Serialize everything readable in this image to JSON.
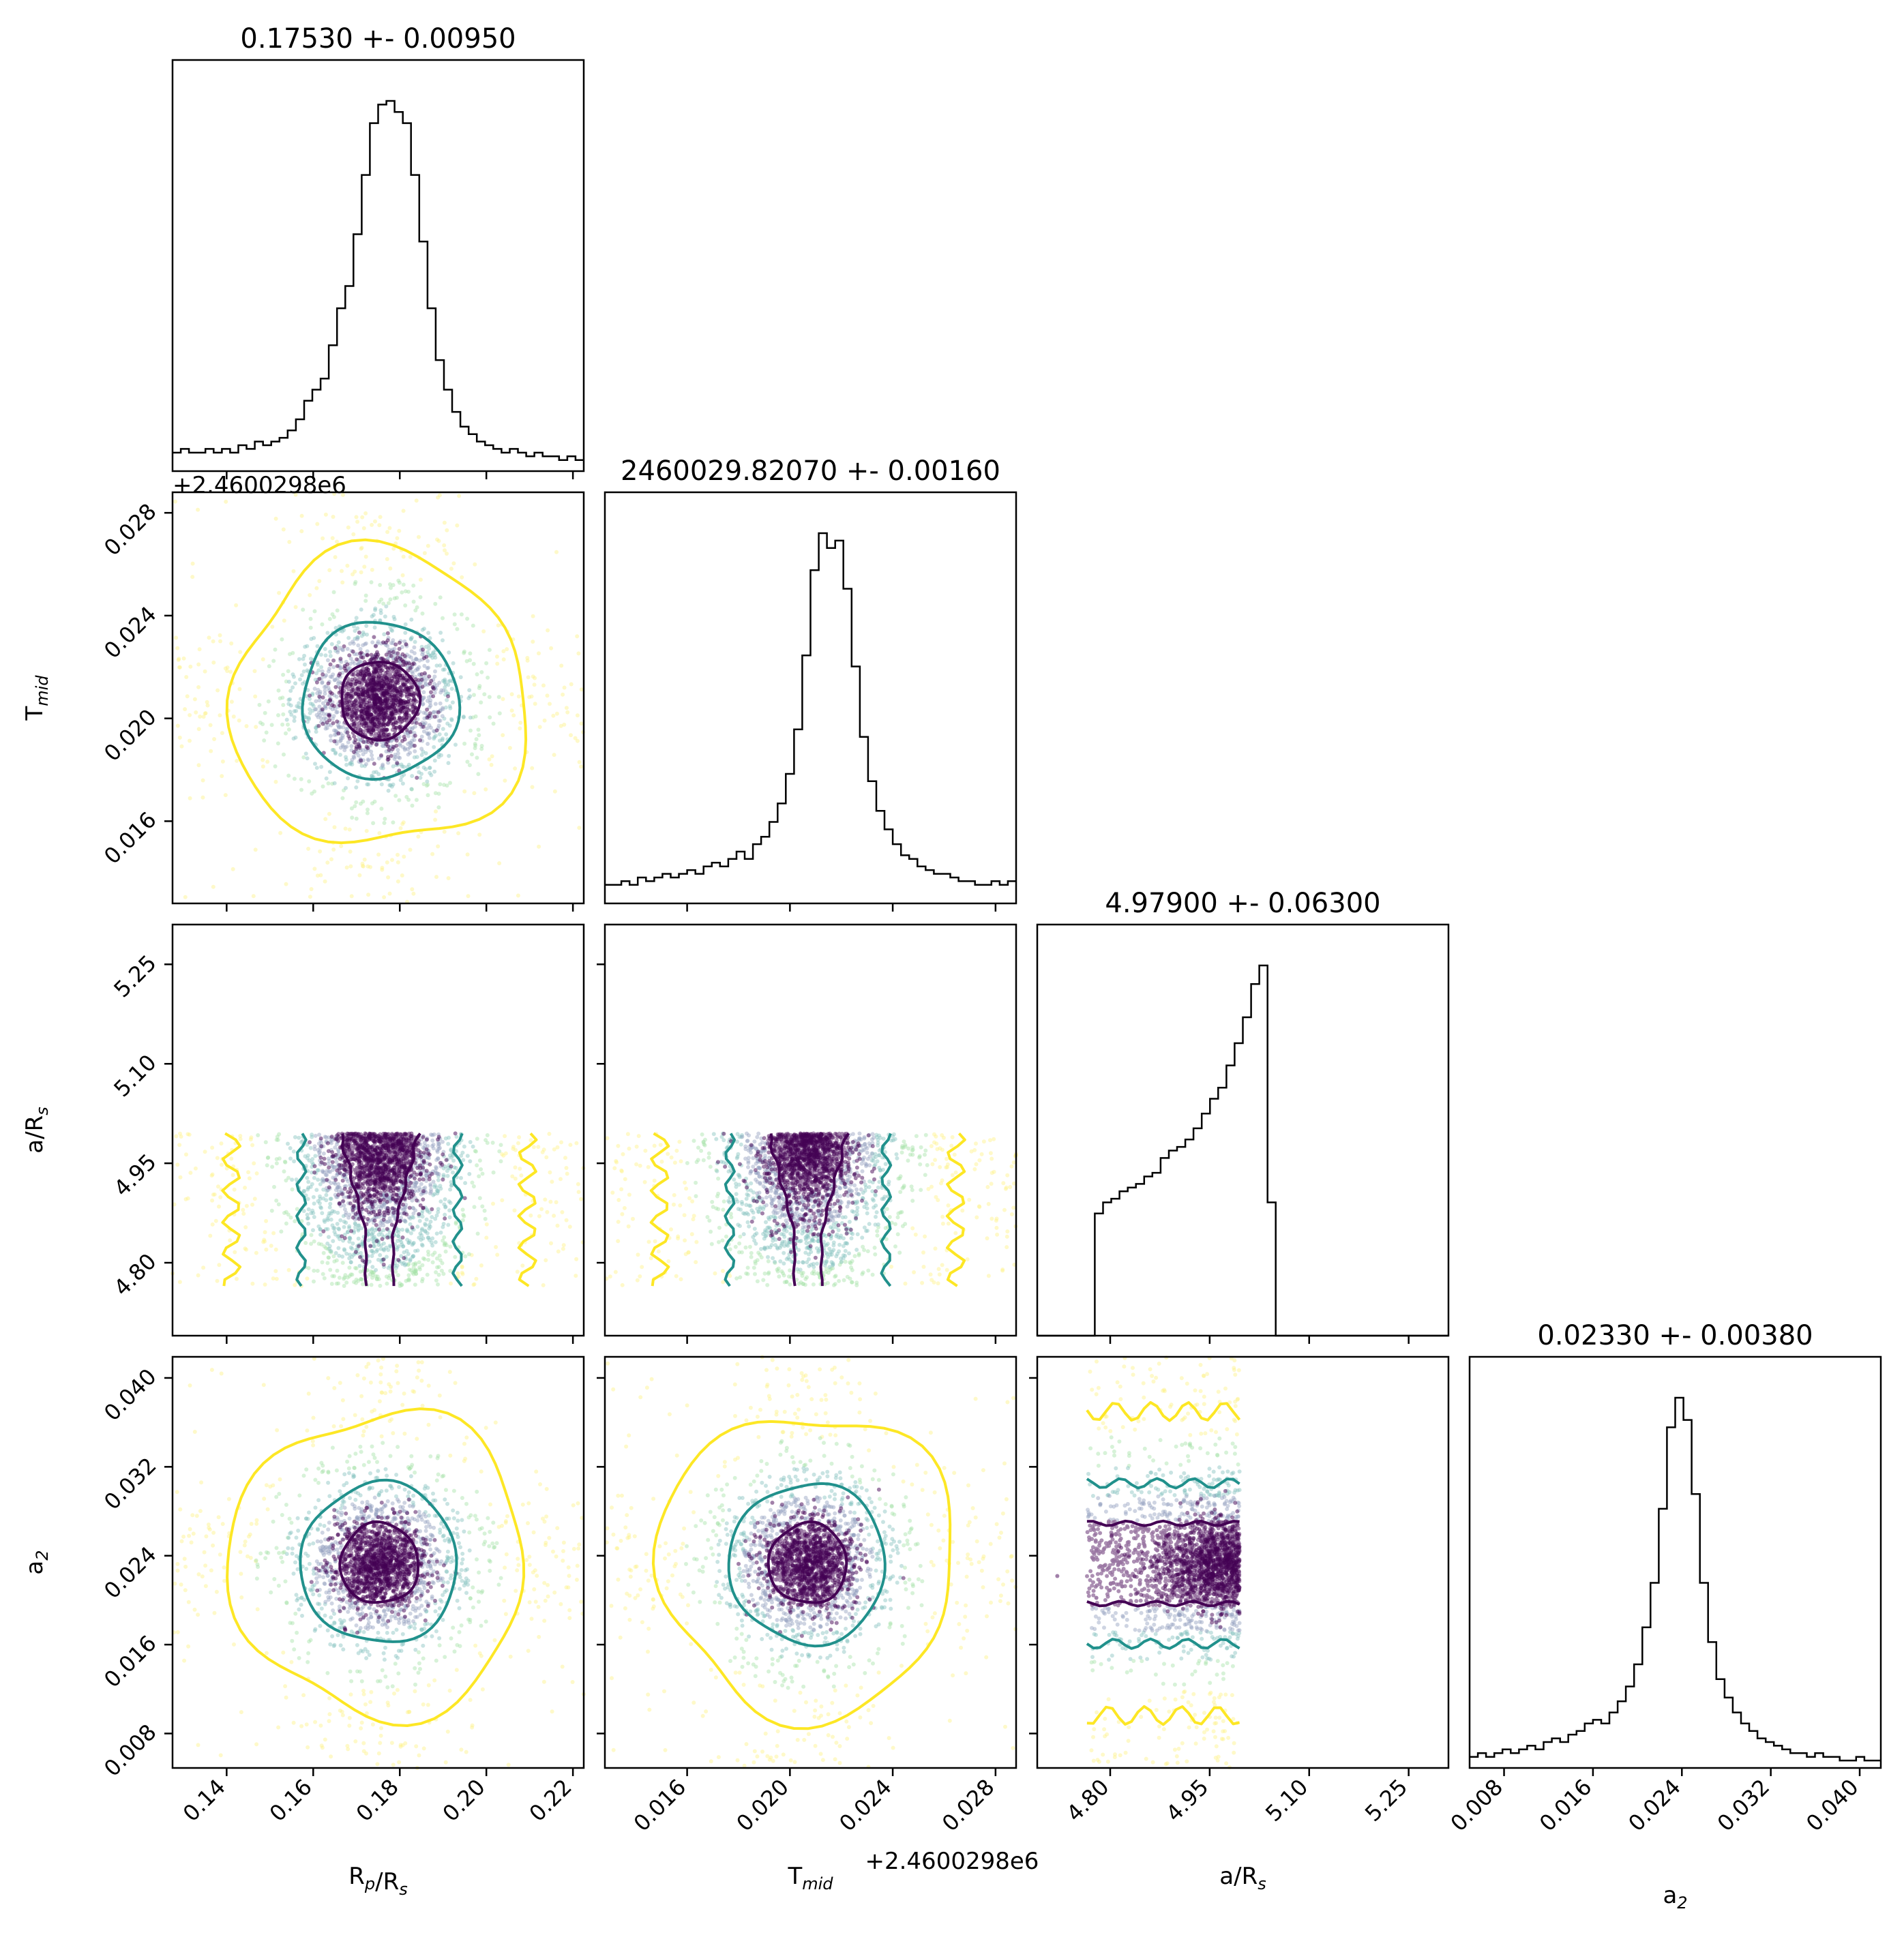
{
  "chart_data": {
    "type": "corner",
    "colors": {
      "histogram": "#000000",
      "contour_inner": "#440154",
      "contour_middle": "#21918c",
      "contour_outer": "#fde725",
      "points": [
        "#440154",
        "#3b528b",
        "#21918c",
        "#5ec962",
        "#fde725"
      ]
    },
    "parameters": [
      {
        "key": "rp",
        "axis_label": "R",
        "axis_label_sub": "p",
        "axis_label_rest": "/R",
        "axis_label_sub2": "s",
        "range": [
          0.1275,
          0.2225
        ],
        "ticks": [
          0.14,
          0.16,
          0.18,
          0.2,
          0.22
        ],
        "tick_labels": [
          "0.14",
          "0.16",
          "0.18",
          "0.20",
          "0.22"
        ],
        "center": 0.1753,
        "sigma": 0.0095,
        "title": "0.17530 +- 0.00950",
        "histogram": [
          0.05,
          0.06,
          0.05,
          0.05,
          0.06,
          0.05,
          0.06,
          0.05,
          0.07,
          0.06,
          0.08,
          0.07,
          0.08,
          0.09,
          0.11,
          0.14,
          0.19,
          0.22,
          0.25,
          0.34,
          0.44,
          0.5,
          0.64,
          0.8,
          0.94,
          0.99,
          1.0,
          0.97,
          0.94,
          0.8,
          0.62,
          0.44,
          0.3,
          0.22,
          0.16,
          0.12,
          0.1,
          0.08,
          0.07,
          0.06,
          0.05,
          0.06,
          0.05,
          0.04,
          0.05,
          0.04,
          0.04,
          0.03,
          0.04,
          0.03
        ]
      },
      {
        "key": "tmid",
        "axis_label": "T",
        "axis_label_sub": "mid",
        "offset_label": "+2.4600298e6",
        "range": [
          0.0128,
          0.0288
        ],
        "ticks": [
          0.016,
          0.02,
          0.024,
          0.028
        ],
        "tick_labels": [
          "0.016",
          "0.020",
          "0.024",
          "0.028"
        ],
        "center": 0.0207,
        "sigma": 0.0016,
        "title": "2460029.82070 +- 0.00160",
        "histogram": [
          0.05,
          0.05,
          0.06,
          0.05,
          0.07,
          0.06,
          0.07,
          0.08,
          0.07,
          0.08,
          0.09,
          0.08,
          0.1,
          0.11,
          0.1,
          0.12,
          0.14,
          0.12,
          0.16,
          0.18,
          0.22,
          0.27,
          0.35,
          0.47,
          0.67,
          0.9,
          1.0,
          0.96,
          0.98,
          0.85,
          0.64,
          0.45,
          0.33,
          0.25,
          0.2,
          0.16,
          0.13,
          0.12,
          0.1,
          0.09,
          0.08,
          0.08,
          0.07,
          0.06,
          0.06,
          0.05,
          0.05,
          0.06,
          0.05,
          0.06
        ]
      },
      {
        "key": "ars",
        "axis_label": "a/R",
        "axis_label_sub": "s",
        "range": [
          4.69,
          5.31
        ],
        "ticks": [
          4.8,
          4.95,
          5.1,
          5.25
        ],
        "tick_labels": [
          "4.80",
          "4.95",
          "5.10",
          "5.25"
        ],
        "center": 4.979,
        "sigma": 0.063,
        "title": "4.97900 +- 0.06300",
        "histogram": [
          0,
          0,
          0,
          0,
          0,
          0,
          0,
          0.33,
          0.36,
          0.37,
          0.39,
          0.4,
          0.41,
          0.43,
          0.44,
          0.48,
          0.5,
          0.51,
          0.53,
          0.56,
          0.6,
          0.64,
          0.67,
          0.73,
          0.79,
          0.86,
          0.95,
          1.0,
          0.36,
          0,
          0,
          0,
          0,
          0,
          0,
          0,
          0,
          0,
          0,
          0,
          0,
          0,
          0,
          0,
          0,
          0,
          0,
          0,
          0,
          0
        ]
      },
      {
        "key": "a2",
        "axis_label": "a",
        "axis_label_sub": "2",
        "range": [
          0.0049,
          0.0419
        ],
        "ticks": [
          0.008,
          0.016,
          0.024,
          0.032,
          0.04
        ],
        "tick_labels": [
          "0.008",
          "0.016",
          "0.024",
          "0.032",
          "0.040"
        ],
        "center": 0.0233,
        "sigma": 0.0038,
        "title": "0.02330 +- 0.00380",
        "histogram": [
          0.03,
          0.04,
          0.03,
          0.04,
          0.05,
          0.04,
          0.05,
          0.06,
          0.05,
          0.07,
          0.08,
          0.07,
          0.09,
          0.1,
          0.12,
          0.13,
          0.12,
          0.15,
          0.18,
          0.22,
          0.28,
          0.38,
          0.5,
          0.7,
          0.92,
          1.0,
          0.94,
          0.74,
          0.5,
          0.34,
          0.24,
          0.19,
          0.15,
          0.12,
          0.1,
          0.08,
          0.07,
          0.06,
          0.05,
          0.04,
          0.04,
          0.03,
          0.04,
          0.03,
          0.03,
          0.02,
          0.02,
          0.03,
          0.02,
          0.02
        ]
      }
    ]
  }
}
